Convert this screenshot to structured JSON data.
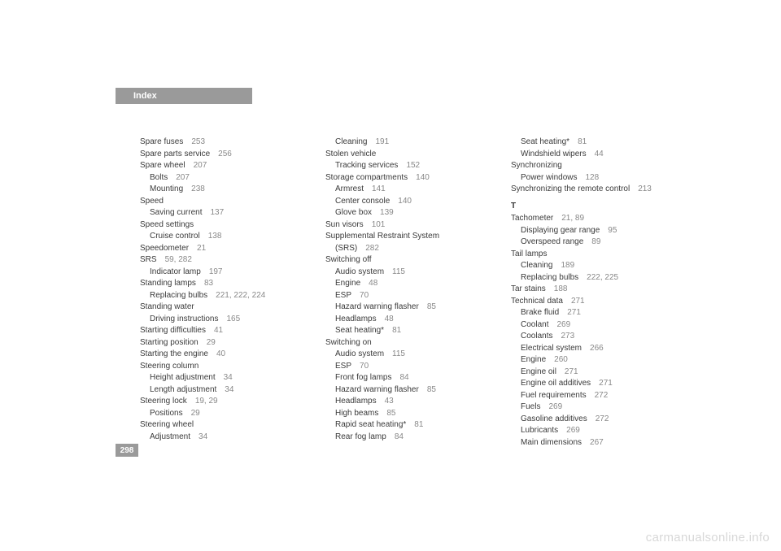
{
  "header": {
    "tab_label": "Index"
  },
  "page_number": "298",
  "watermark": "carmanualsonline.info",
  "columns": [
    [
      {
        "label": "Spare fuses",
        "pages": "253",
        "indent": 0
      },
      {
        "label": "Spare parts service",
        "pages": "256",
        "indent": 0
      },
      {
        "label": "Spare wheel",
        "pages": "207",
        "indent": 0
      },
      {
        "label": "Bolts",
        "pages": "207",
        "indent": 1
      },
      {
        "label": "Mounting",
        "pages": "238",
        "indent": 1
      },
      {
        "label": "Speed",
        "pages": "",
        "indent": 0
      },
      {
        "label": "Saving current",
        "pages": "137",
        "indent": 1
      },
      {
        "label": "Speed settings",
        "pages": "",
        "indent": 0
      },
      {
        "label": "Cruise control",
        "pages": "138",
        "indent": 1
      },
      {
        "label": "Speedometer",
        "pages": "21",
        "indent": 0
      },
      {
        "label": "SRS",
        "pages": "59, 282",
        "indent": 0
      },
      {
        "label": "Indicator lamp",
        "pages": "197",
        "indent": 1
      },
      {
        "label": "Standing lamps",
        "pages": "83",
        "indent": 0
      },
      {
        "label": "Replacing bulbs",
        "pages": "221, 222, 224",
        "indent": 1
      },
      {
        "label": "Standing water",
        "pages": "",
        "indent": 0
      },
      {
        "label": "Driving instructions",
        "pages": "165",
        "indent": 1
      },
      {
        "label": "Starting difficulties",
        "pages": "41",
        "indent": 0
      },
      {
        "label": "Starting position",
        "pages": "29",
        "indent": 0
      },
      {
        "label": "Starting the engine",
        "pages": "40",
        "indent": 0
      },
      {
        "label": "Steering column",
        "pages": "",
        "indent": 0
      },
      {
        "label": "Height adjustment",
        "pages": "34",
        "indent": 1
      },
      {
        "label": "Length adjustment",
        "pages": "34",
        "indent": 1
      },
      {
        "label": "Steering lock",
        "pages": "19, 29",
        "indent": 0
      },
      {
        "label": "Positions",
        "pages": "29",
        "indent": 1
      },
      {
        "label": "Steering wheel",
        "pages": "",
        "indent": 0
      },
      {
        "label": "Adjustment",
        "pages": "34",
        "indent": 1
      }
    ],
    [
      {
        "label": "Cleaning",
        "pages": "191",
        "indent": 1
      },
      {
        "label": "Stolen vehicle",
        "pages": "",
        "indent": 0
      },
      {
        "label": "Tracking services",
        "pages": "152",
        "indent": 1
      },
      {
        "label": "Storage compartments",
        "pages": "140",
        "indent": 0
      },
      {
        "label": "Armrest",
        "pages": "141",
        "indent": 1
      },
      {
        "label": "Center console",
        "pages": "140",
        "indent": 1
      },
      {
        "label": "Glove box",
        "pages": "139",
        "indent": 1
      },
      {
        "label": "Sun visors",
        "pages": "101",
        "indent": 0
      },
      {
        "label": "Supplemental Restraint System",
        "pages": "",
        "indent": 0
      },
      {
        "label": "(SRS)",
        "pages": "282",
        "indent": 1
      },
      {
        "label": "Switching off",
        "pages": "",
        "indent": 0
      },
      {
        "label": "Audio system",
        "pages": "115",
        "indent": 1
      },
      {
        "label": "Engine",
        "pages": "48",
        "indent": 1
      },
      {
        "label": "ESP",
        "pages": "70",
        "indent": 1
      },
      {
        "label": "Hazard warning flasher",
        "pages": "85",
        "indent": 1
      },
      {
        "label": "Headlamps",
        "pages": "48",
        "indent": 1
      },
      {
        "label": "Seat heating*",
        "pages": "81",
        "indent": 1
      },
      {
        "label": "Switching on",
        "pages": "",
        "indent": 0
      },
      {
        "label": "Audio system",
        "pages": "115",
        "indent": 1
      },
      {
        "label": "ESP",
        "pages": "70",
        "indent": 1
      },
      {
        "label": "Front fog lamps",
        "pages": "84",
        "indent": 1
      },
      {
        "label": "Hazard warning flasher",
        "pages": "85",
        "indent": 1
      },
      {
        "label": "Headlamps",
        "pages": "43",
        "indent": 1
      },
      {
        "label": "High beams",
        "pages": "85",
        "indent": 1
      },
      {
        "label": "Rapid seat heating*",
        "pages": "81",
        "indent": 1
      },
      {
        "label": "Rear fog lamp",
        "pages": "84",
        "indent": 1
      }
    ],
    [
      {
        "label": "Seat heating*",
        "pages": "81",
        "indent": 1
      },
      {
        "label": "Windshield wipers",
        "pages": "44",
        "indent": 1
      },
      {
        "label": "Synchronizing",
        "pages": "",
        "indent": 0
      },
      {
        "label": "Power windows",
        "pages": "128",
        "indent": 1
      },
      {
        "label": "Synchronizing the remote control",
        "pages": "213",
        "indent": 0
      },
      {
        "letter": "T"
      },
      {
        "label": "Tachometer",
        "pages": "21, 89",
        "indent": 0
      },
      {
        "label": "Displaying gear range",
        "pages": "95",
        "indent": 1
      },
      {
        "label": "Overspeed range",
        "pages": "89",
        "indent": 1
      },
      {
        "label": "Tail lamps",
        "pages": "",
        "indent": 0
      },
      {
        "label": "Cleaning",
        "pages": "189",
        "indent": 1
      },
      {
        "label": "Replacing bulbs",
        "pages": "222, 225",
        "indent": 1
      },
      {
        "label": "Tar stains",
        "pages": "188",
        "indent": 0
      },
      {
        "label": "Technical data",
        "pages": "271",
        "indent": 0
      },
      {
        "label": "Brake fluid",
        "pages": "271",
        "indent": 1
      },
      {
        "label": "Coolant",
        "pages": "269",
        "indent": 1
      },
      {
        "label": "Coolants",
        "pages": "273",
        "indent": 1
      },
      {
        "label": "Electrical system",
        "pages": "266",
        "indent": 1
      },
      {
        "label": "Engine",
        "pages": "260",
        "indent": 1
      },
      {
        "label": "Engine oil",
        "pages": "271",
        "indent": 1
      },
      {
        "label": "Engine oil additives",
        "pages": "271",
        "indent": 1
      },
      {
        "label": "Fuel requirements",
        "pages": "272",
        "indent": 1
      },
      {
        "label": "Fuels",
        "pages": "269",
        "indent": 1
      },
      {
        "label": "Gasoline additives",
        "pages": "272",
        "indent": 1
      },
      {
        "label": "Lubricants",
        "pages": "269",
        "indent": 1
      },
      {
        "label": "Main dimensions",
        "pages": "267",
        "indent": 1
      }
    ]
  ]
}
